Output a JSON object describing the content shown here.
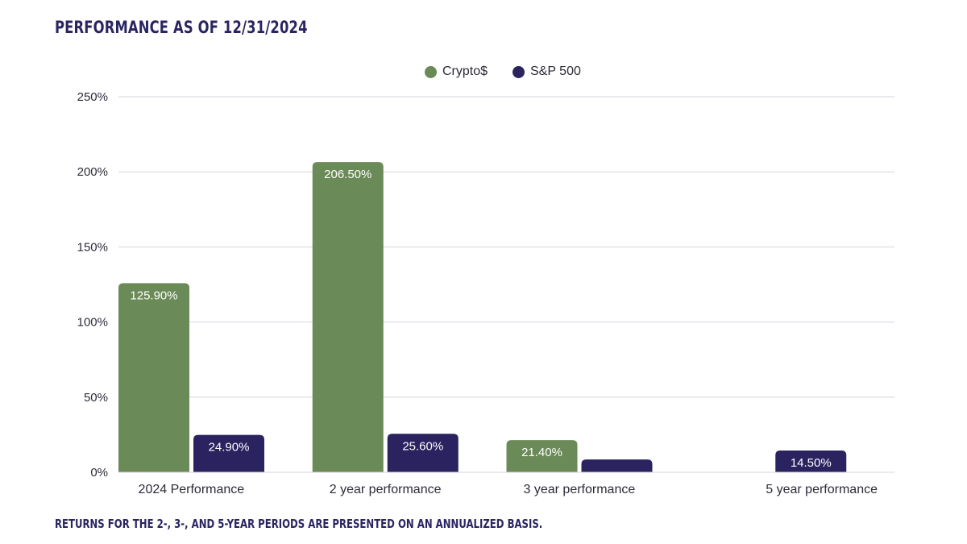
{
  "title": "PERFORMANCE AS OF 12/31/2024",
  "footnote": "RETURNS FOR THE 2-, 3-, AND 5-YEAR PERIODS ARE PRESENTED ON AN ANNUALIZED BASIS.",
  "colors": {
    "crypto": "#6a8a57",
    "sp500": "#2a2360",
    "grid": "#d4d6de",
    "text": "#2b2b3a",
    "title": "#2a2560"
  },
  "chart_data": {
    "type": "bar",
    "title": "PERFORMANCE AS OF 12/31/2024",
    "xlabel": "",
    "ylabel": "",
    "categories": [
      "2024 Performance",
      "2 year performance",
      "3 year performance",
      "5 year performance"
    ],
    "series": [
      {
        "name": "Crypto$",
        "color": "#6a8a57",
        "values": [
          125.9,
          206.5,
          21.4,
          null
        ],
        "labels": [
          "125.90%",
          "206.50%",
          "21.40%",
          ""
        ]
      },
      {
        "name": "S&P 500",
        "color": "#2a2360",
        "values": [
          24.9,
          25.6,
          8.5,
          14.5
        ],
        "labels": [
          "24.90%",
          "25.60%",
          "",
          "14.50%"
        ]
      }
    ],
    "ylim": [
      0,
      250
    ],
    "yticks": [
      0,
      50,
      100,
      150,
      200,
      250
    ],
    "ytick_labels": [
      "0%",
      "50%",
      "100%",
      "150%",
      "200%",
      "250%"
    ],
    "grid": true,
    "legend_position": "top-center"
  }
}
